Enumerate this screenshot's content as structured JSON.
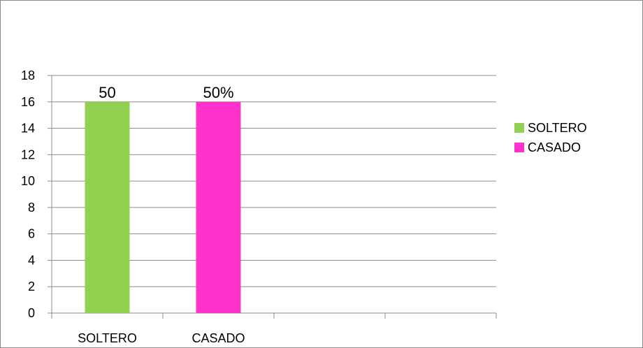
{
  "chart_data": {
    "type": "bar",
    "categories": [
      "SOLTERO",
      "CASADO",
      "",
      ""
    ],
    "series": [
      {
        "name": "SOLTERO",
        "color": "#92D050",
        "values": [
          16,
          null,
          null,
          null
        ]
      },
      {
        "name": "CASADO",
        "color": "#FF33CC",
        "values": [
          null,
          16,
          null,
          null
        ]
      }
    ],
    "data_labels": [
      "50",
      "50%"
    ],
    "ylim": [
      0,
      18
    ],
    "yticks": [
      0,
      2,
      4,
      6,
      8,
      10,
      12,
      14,
      16,
      18
    ],
    "grid": true,
    "legend": {
      "position": "right",
      "entries": [
        "SOLTERO",
        "CASADO"
      ]
    },
    "title": "",
    "xlabel": "",
    "ylabel": ""
  }
}
